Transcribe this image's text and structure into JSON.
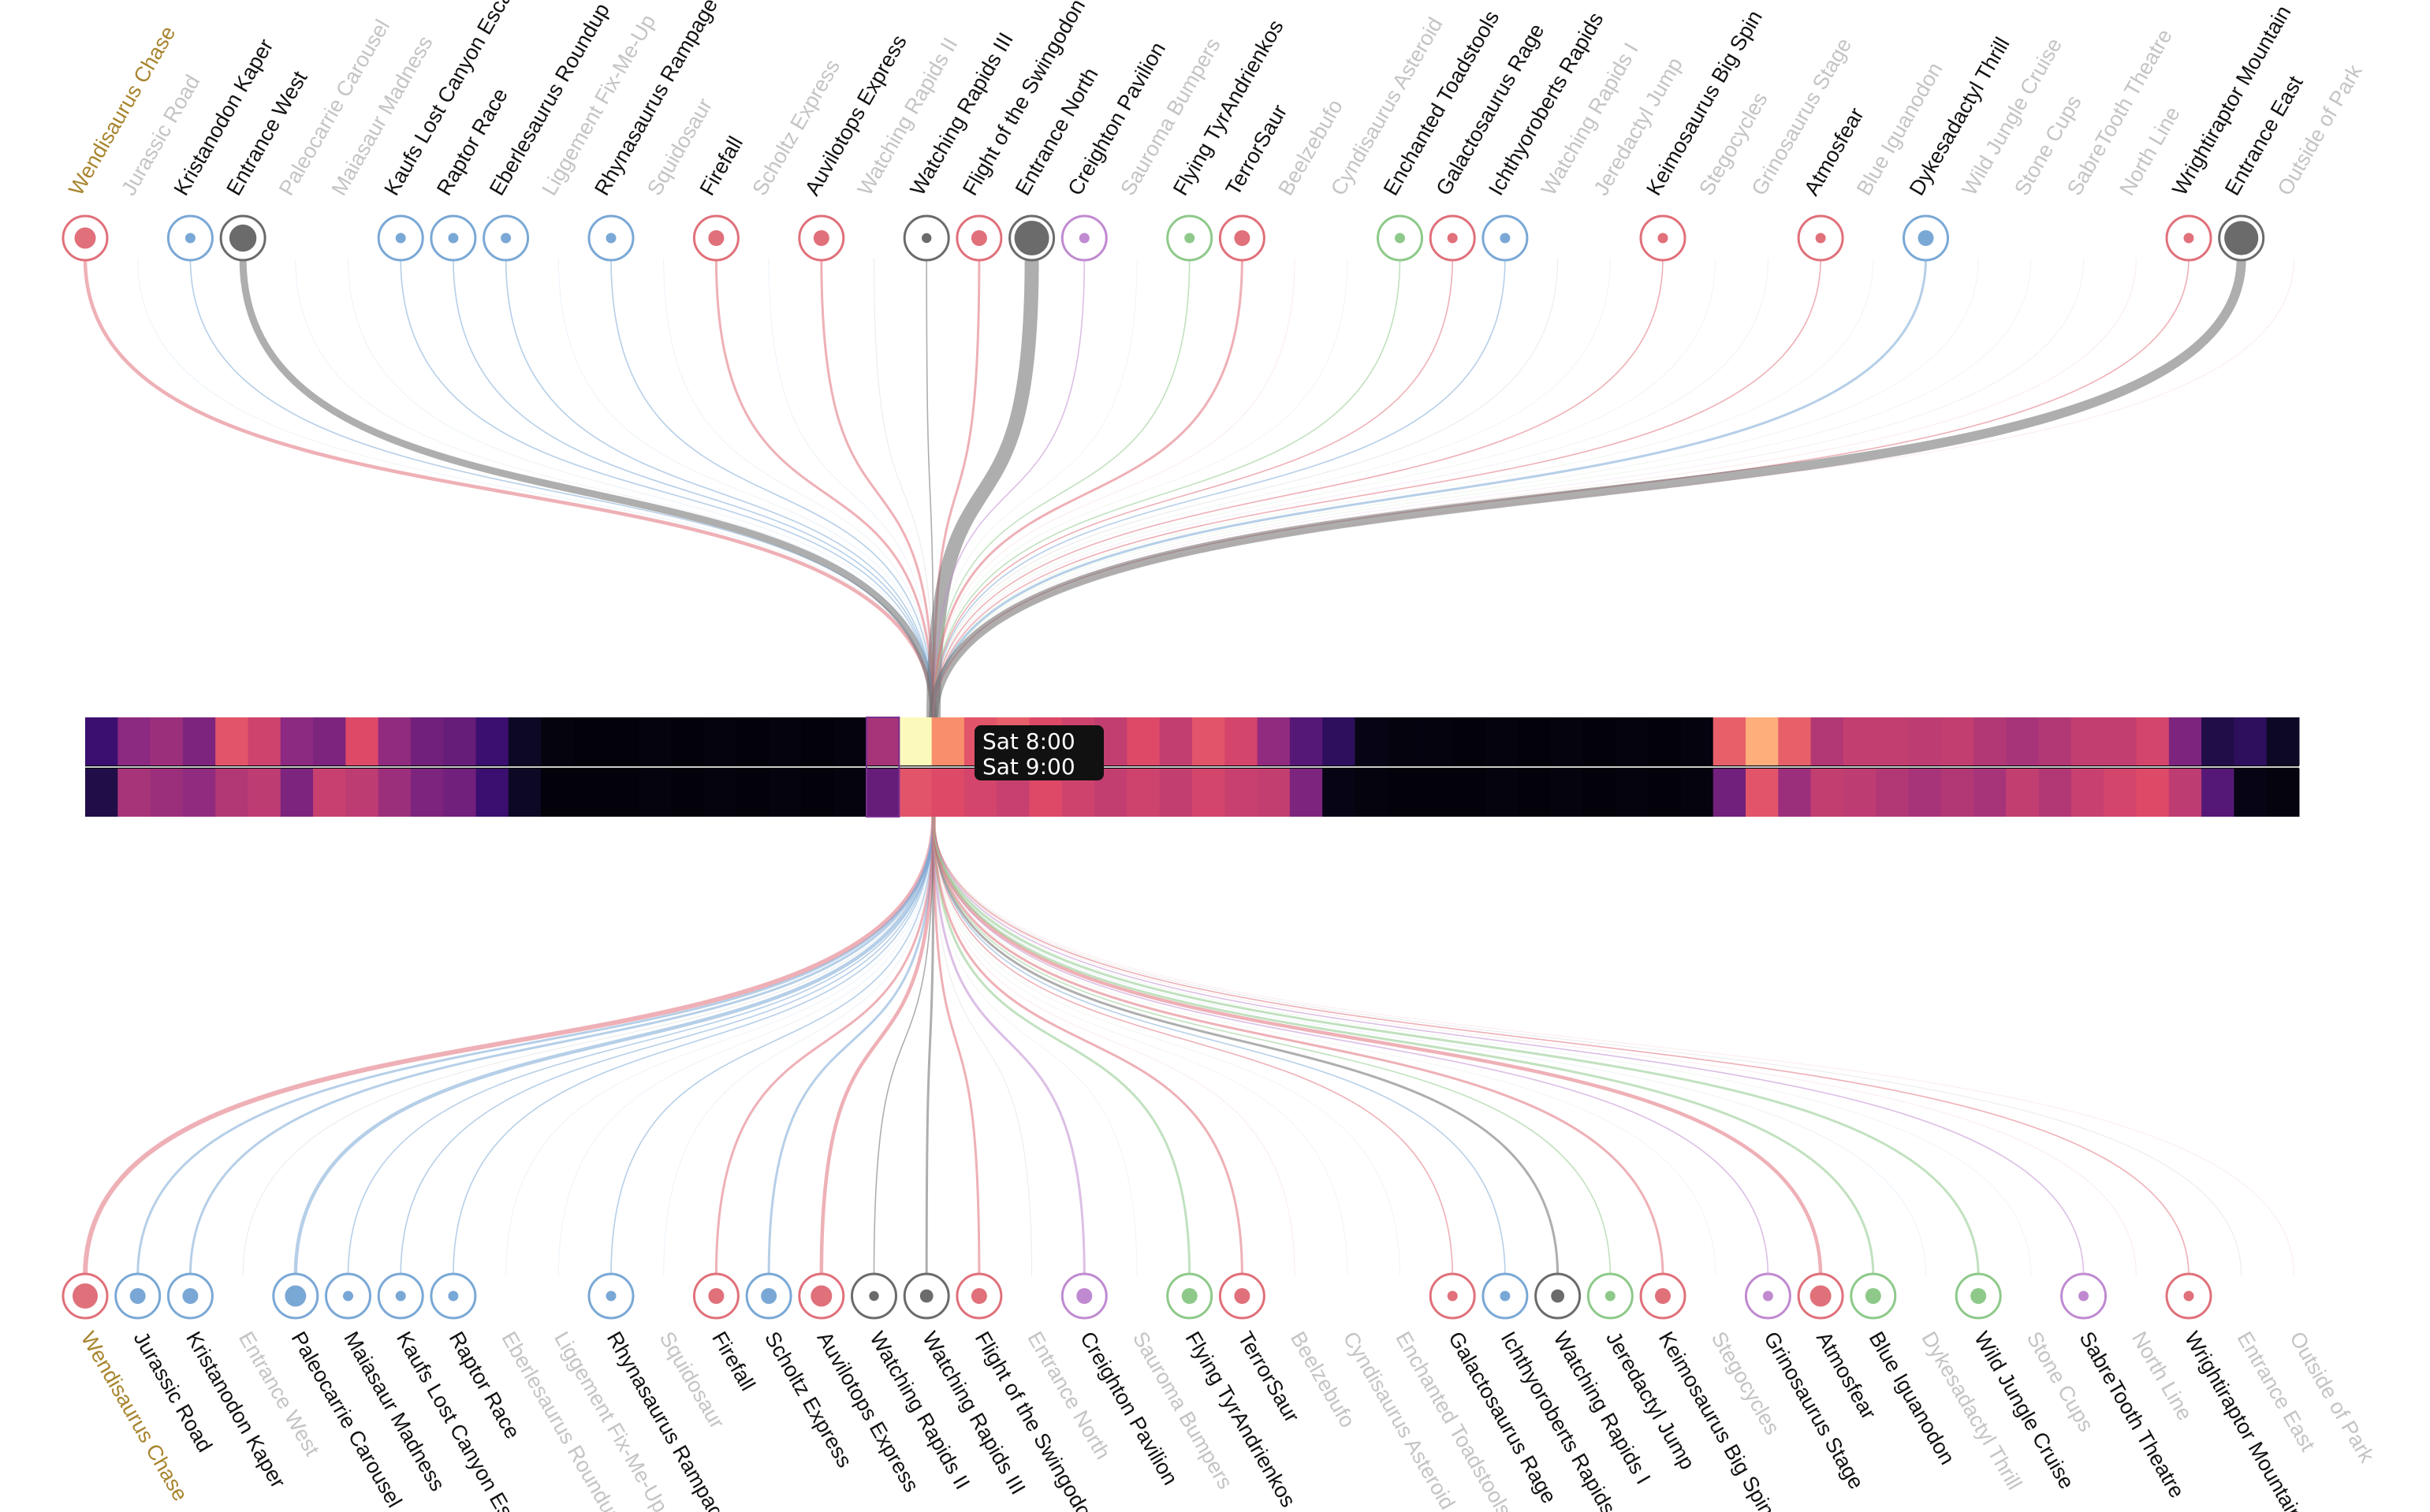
{
  "highlight_color": "#a8842e",
  "tooltip": {
    "start": "Sat 8:00",
    "end": "Sat 9:00"
  },
  "category_colors": {
    "ride": "#e0707a",
    "water": "#7aa8d6",
    "entrance": "#6b6b6b",
    "show": "#c08ad0",
    "kiddie": "#8ec98a"
  },
  "locations": [
    {
      "name": "Wendisaurus Chase",
      "type": "ride",
      "top_flow": 3,
      "bottom_flow": 4,
      "highlight": true
    },
    {
      "name": "Jurassic Road",
      "type": "water",
      "top_flow": 0,
      "bottom_flow": 2
    },
    {
      "name": "Kristanodon Kaper",
      "type": "water",
      "top_flow": 1,
      "bottom_flow": 2
    },
    {
      "name": "Entrance West",
      "type": "entrance",
      "top_flow": 6,
      "bottom_flow": 0
    },
    {
      "name": "Paleocarrie Carousel",
      "type": "water",
      "top_flow": 0,
      "bottom_flow": 3
    },
    {
      "name": "Maiasaur Madness",
      "type": "water",
      "top_flow": 0,
      "bottom_flow": 1
    },
    {
      "name": "Kaufs Lost Canyon Escape",
      "type": "water",
      "top_flow": 1,
      "bottom_flow": 1
    },
    {
      "name": "Raptor Race",
      "type": "water",
      "top_flow": 1,
      "bottom_flow": 1
    },
    {
      "name": "Eberlesaurus Roundup",
      "type": "water",
      "top_flow": 1,
      "bottom_flow": 0
    },
    {
      "name": "Liggement Fix-Me-Up",
      "type": "water",
      "top_flow": 0,
      "bottom_flow": 0
    },
    {
      "name": "Rhynasaurus Rampage",
      "type": "water",
      "top_flow": 1,
      "bottom_flow": 1
    },
    {
      "name": "Squidosaur",
      "type": "water",
      "top_flow": 0,
      "bottom_flow": 0
    },
    {
      "name": "Firefall",
      "type": "ride",
      "top_flow": 2,
      "bottom_flow": 2
    },
    {
      "name": "Scholtz Express",
      "type": "water",
      "top_flow": 0,
      "bottom_flow": 2
    },
    {
      "name": "Auvilotops Express",
      "type": "ride",
      "top_flow": 2,
      "bottom_flow": 3
    },
    {
      "name": "Watching Rapids II",
      "type": "entrance",
      "top_flow": 0,
      "bottom_flow": 1
    },
    {
      "name": "Watching Rapids III",
      "type": "entrance",
      "top_flow": 1,
      "bottom_flow": 2
    },
    {
      "name": "Flight of the Swingodon",
      "type": "ride",
      "top_flow": 2,
      "bottom_flow": 2
    },
    {
      "name": "Entrance North",
      "type": "entrance",
      "top_flow": 12,
      "bottom_flow": 0
    },
    {
      "name": "Creighton Pavilion",
      "type": "show",
      "top_flow": 1,
      "bottom_flow": 2
    },
    {
      "name": "Sauroma Bumpers",
      "type": "kiddie",
      "top_flow": 0,
      "bottom_flow": 0
    },
    {
      "name": "Flying TyrAndrienkos",
      "type": "kiddie",
      "top_flow": 1,
      "bottom_flow": 2
    },
    {
      "name": "TerrorSaur",
      "type": "ride",
      "top_flow": 2,
      "bottom_flow": 2
    },
    {
      "name": "Beelzebufo",
      "type": "ride",
      "top_flow": 0,
      "bottom_flow": 0
    },
    {
      "name": "Cyndisaurus Asteroid",
      "type": "kiddie",
      "top_flow": 0,
      "bottom_flow": 0
    },
    {
      "name": "Enchanted Toadstools",
      "type": "kiddie",
      "top_flow": 1,
      "bottom_flow": 0
    },
    {
      "name": "Galactosaurus Rage",
      "type": "ride",
      "top_flow": 1,
      "bottom_flow": 1
    },
    {
      "name": "Ichthyoroberts Rapids",
      "type": "water",
      "top_flow": 1,
      "bottom_flow": 1
    },
    {
      "name": "Watching Rapids I",
      "type": "entrance",
      "top_flow": 0,
      "bottom_flow": 2
    },
    {
      "name": "Jeredactyl Jump",
      "type": "kiddie",
      "top_flow": 0,
      "bottom_flow": 1
    },
    {
      "name": "Keimosaurus Big Spin",
      "type": "ride",
      "top_flow": 1,
      "bottom_flow": 2
    },
    {
      "name": "Stegocycles",
      "type": "kiddie",
      "top_flow": 0,
      "bottom_flow": 0
    },
    {
      "name": "Grinosaurus Stage",
      "type": "show",
      "top_flow": 0,
      "bottom_flow": 1
    },
    {
      "name": "Atmosfear",
      "type": "ride",
      "top_flow": 1,
      "bottom_flow": 3
    },
    {
      "name": "Blue Iguanodon",
      "type": "kiddie",
      "top_flow": 0,
      "bottom_flow": 2
    },
    {
      "name": "Dykesadactyl Thrill",
      "type": "water",
      "top_flow": 2,
      "bottom_flow": 0
    },
    {
      "name": "Wild Jungle Cruise",
      "type": "kiddie",
      "top_flow": 0,
      "bottom_flow": 2
    },
    {
      "name": "Stone Cups",
      "type": "kiddie",
      "top_flow": 0,
      "bottom_flow": 0
    },
    {
      "name": "SabreTooth Theatre",
      "type": "show",
      "top_flow": 0,
      "bottom_flow": 1
    },
    {
      "name": "North Line",
      "type": "ride",
      "top_flow": 0,
      "bottom_flow": 0
    },
    {
      "name": "Wrightiraptor Mountain",
      "type": "ride",
      "top_flow": 1,
      "bottom_flow": 1
    },
    {
      "name": "Entrance East",
      "type": "entrance",
      "top_flow": 8,
      "bottom_flow": 0
    },
    {
      "name": "Outside of Park",
      "type": "ride",
      "top_flow": 0,
      "bottom_flow": 0
    }
  ],
  "heatmap": {
    "selected_index": 24,
    "row1": [
      0.3,
      0.45,
      0.48,
      0.42,
      0.62,
      0.57,
      0.45,
      0.42,
      0.6,
      0.46,
      0.4,
      0.38,
      0.3,
      0.1,
      0.03,
      0.02,
      0.02,
      0.03,
      0.02,
      0.03,
      0.02,
      0.03,
      0.02,
      0.03,
      0.5,
      0.98,
      0.72,
      0.62,
      0.64,
      0.6,
      0.57,
      0.55,
      0.6,
      0.55,
      0.62,
      0.58,
      0.46,
      0.35,
      0.25,
      0.05,
      0.03,
      0.03,
      0.02,
      0.03,
      0.02,
      0.03,
      0.02,
      0.03,
      0.02,
      0.03,
      0.64,
      0.78,
      0.64,
      0.52,
      0.55,
      0.55,
      0.54,
      0.55,
      0.52,
      0.5,
      0.52,
      0.55,
      0.55,
      0.58,
      0.42,
      0.2,
      0.25,
      0.1
    ],
    "row2": [
      0.2,
      0.5,
      0.48,
      0.46,
      0.52,
      0.54,
      0.42,
      0.56,
      0.54,
      0.48,
      0.42,
      0.4,
      0.3,
      0.1,
      0.02,
      0.02,
      0.02,
      0.03,
      0.02,
      0.03,
      0.02,
      0.03,
      0.02,
      0.03,
      0.38,
      0.62,
      0.6,
      0.58,
      0.56,
      0.6,
      0.57,
      0.55,
      0.57,
      0.55,
      0.58,
      0.56,
      0.55,
      0.42,
      0.05,
      0.03,
      0.02,
      0.02,
      0.02,
      0.03,
      0.02,
      0.03,
      0.02,
      0.03,
      0.02,
      0.03,
      0.4,
      0.62,
      0.48,
      0.55,
      0.54,
      0.52,
      0.5,
      0.52,
      0.5,
      0.55,
      0.52,
      0.56,
      0.58,
      0.6,
      0.54,
      0.35,
      0.05,
      0.03
    ]
  }
}
